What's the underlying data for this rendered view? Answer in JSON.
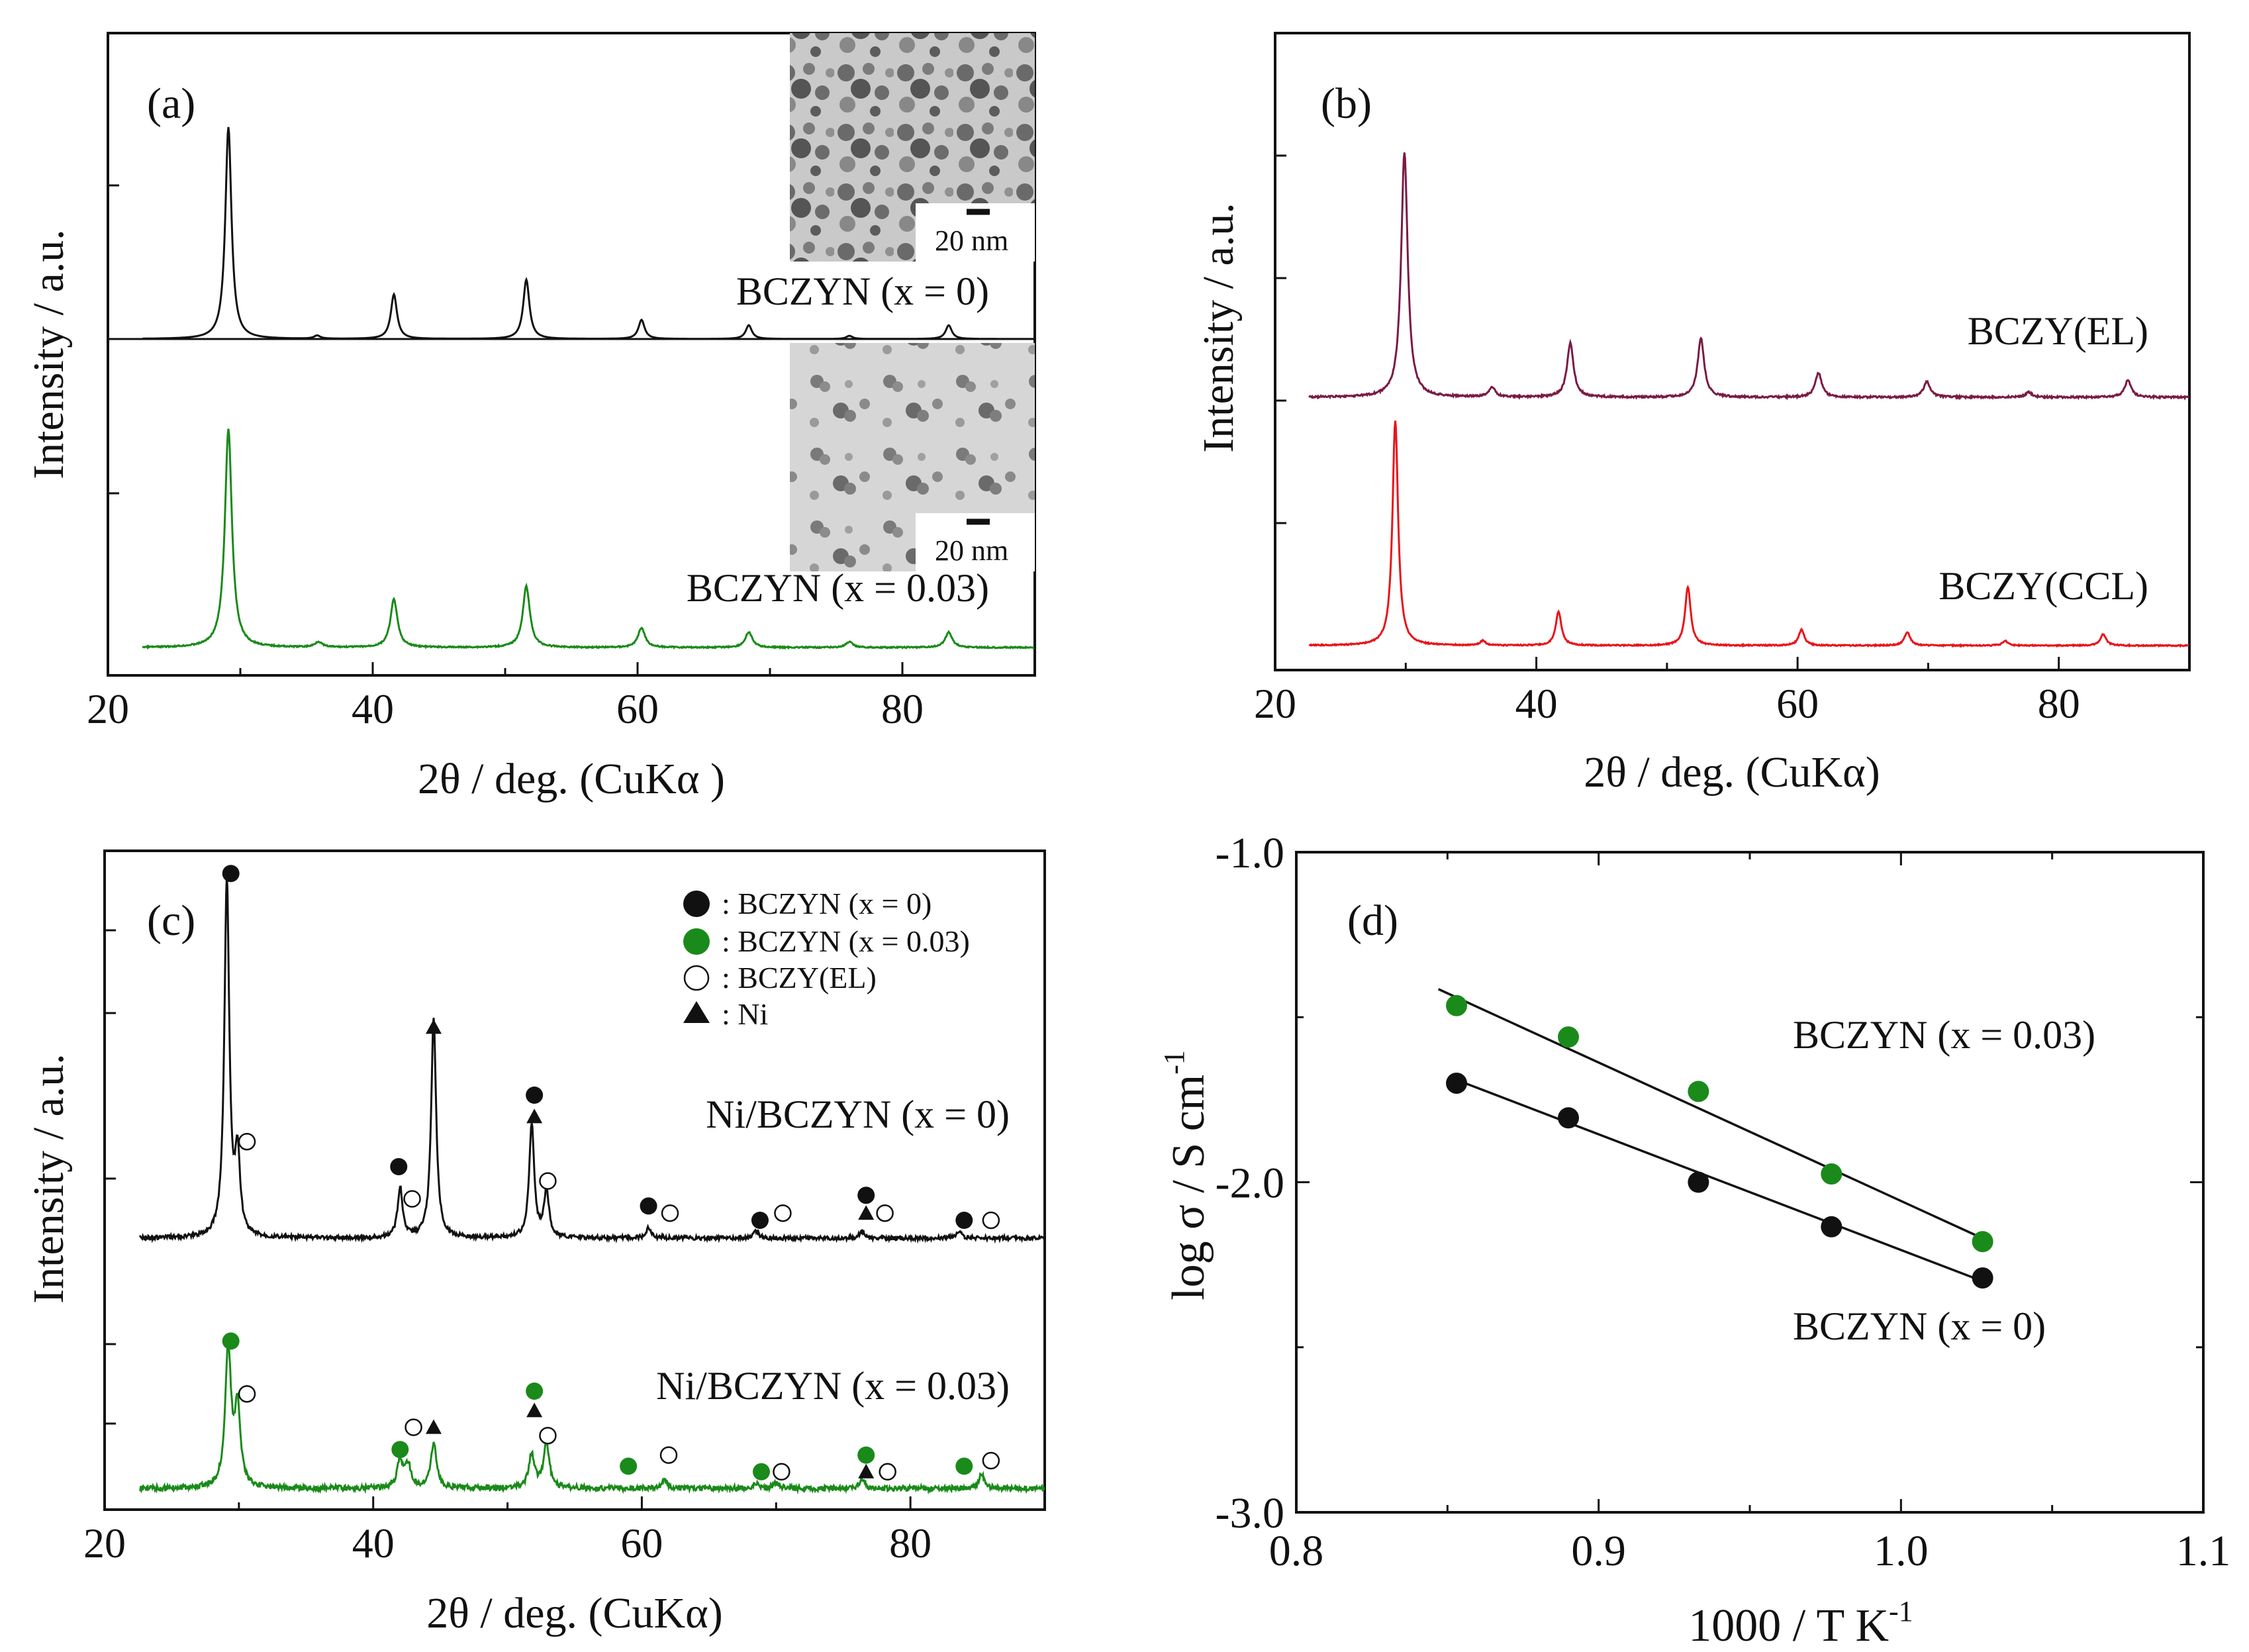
{
  "figure": {
    "panels": {
      "a": {
        "label": "(a)",
        "xlabel": "2θ / deg. (CuKα )",
        "ylabel": "Intensity / a.u.",
        "xticks": [
          "20",
          "40",
          "60",
          "80"
        ],
        "xlim": [
          20,
          90
        ],
        "inset_scale_label": "20 nm",
        "traces": [
          {
            "name": "BCZYN (x = 0)",
            "color": "#111111",
            "peaks": [
              [
                29.1,
                1.0
              ],
              [
                35.8,
                0.015
              ],
              [
                41.6,
                0.21
              ],
              [
                51.6,
                0.28
              ],
              [
                60.3,
                0.09
              ],
              [
                68.4,
                0.065
              ],
              [
                76.0,
                0.015
              ],
              [
                83.5,
                0.065
              ]
            ]
          },
          {
            "name": "BCZYN (x = 0.03)",
            "color": "#1a8a1a",
            "peaks": [
              [
                29.1,
                1.0
              ],
              [
                35.9,
                0.025
              ],
              [
                41.6,
                0.22
              ],
              [
                51.6,
                0.28
              ],
              [
                60.3,
                0.09
              ],
              [
                68.4,
                0.07
              ],
              [
                76.0,
                0.025
              ],
              [
                83.5,
                0.07
              ]
            ]
          }
        ]
      },
      "b": {
        "label": "(b)",
        "xlabel": "2θ / deg. (CuKα)",
        "ylabel": "Intensity / a.u.",
        "xticks": [
          "20",
          "40",
          "60",
          "80"
        ],
        "xlim": [
          20,
          90
        ],
        "traces": [
          {
            "name": "BCZY(EL)",
            "color": "#7a1a45",
            "peaks": [
              [
                29.9,
                1.0
              ],
              [
                36.6,
                0.04
              ],
              [
                42.6,
                0.22
              ],
              [
                52.6,
                0.24
              ],
              [
                61.6,
                0.1
              ],
              [
                69.9,
                0.065
              ],
              [
                77.7,
                0.02
              ],
              [
                85.3,
                0.07
              ]
            ]
          },
          {
            "name": "BCZY(CCL)",
            "color": "#e8141b",
            "peaks": [
              [
                29.2,
                1.0
              ],
              [
                35.9,
                0.02
              ],
              [
                41.7,
                0.15
              ],
              [
                51.6,
                0.26
              ],
              [
                60.3,
                0.07
              ],
              [
                68.4,
                0.06
              ],
              [
                75.9,
                0.02
              ],
              [
                83.4,
                0.05
              ]
            ]
          }
        ]
      },
      "c": {
        "label": "(c)",
        "xlabel": "2θ / deg. (CuKα)",
        "ylabel": "Intensity / a.u.",
        "xticks": [
          "20",
          "40",
          "60",
          "80"
        ],
        "xlim": [
          20,
          90
        ],
        "legend": [
          {
            "marker": "filled-circle",
            "color": "#111111",
            "label": ": BCZYN (x = 0)"
          },
          {
            "marker": "filled-circle",
            "color": "#1a8a1a",
            "label": ": BCZYN (x = 0.03)"
          },
          {
            "marker": "open-circle",
            "color": "#111111",
            "label": ": BCZY(EL)"
          },
          {
            "marker": "triangle",
            "color": "#111111",
            "label": ": Ni"
          }
        ],
        "traces": [
          {
            "name": "Ni/BCZYN (x = 0)",
            "color": "#111111",
            "peaks": [
              [
                29.1,
                1.0
              ],
              [
                29.9,
                0.22
              ],
              [
                42.0,
                0.14
              ],
              [
                44.5,
                0.62
              ],
              [
                51.8,
                0.32
              ],
              [
                52.9,
                0.13
              ],
              [
                60.5,
                0.03
              ],
              [
                68.5,
                0.02
              ],
              [
                76.4,
                0.02
              ],
              [
                83.6,
                0.02
              ]
            ],
            "markers": [
              {
                "type": "filled-circle",
                "x": 29.4,
                "h": 1.02
              },
              {
                "type": "open-circle",
                "x": 30.6,
                "h": 0.27
              },
              {
                "type": "filled-circle",
                "x": 41.9,
                "h": 0.2
              },
              {
                "type": "open-circle",
                "x": 42.9,
                "h": 0.11
              },
              {
                "type": "triangle",
                "x": 44.5,
                "h": 0.59
              },
              {
                "type": "filled-circle",
                "x": 52.0,
                "h": 0.4
              },
              {
                "type": "triangle",
                "x": 52.0,
                "h": 0.34
              },
              {
                "type": "open-circle",
                "x": 53.0,
                "h": 0.16
              },
              {
                "type": "filled-circle",
                "x": 60.5,
                "h": 0.09
              },
              {
                "type": "open-circle",
                "x": 62.1,
                "h": 0.07
              },
              {
                "type": "filled-circle",
                "x": 68.8,
                "h": 0.05
              },
              {
                "type": "open-circle",
                "x": 70.5,
                "h": 0.07
              },
              {
                "type": "filled-circle",
                "x": 76.7,
                "h": 0.12
              },
              {
                "type": "triangle",
                "x": 76.7,
                "h": 0.07
              },
              {
                "type": "open-circle",
                "x": 78.1,
                "h": 0.07
              },
              {
                "type": "filled-circle",
                "x": 84.0,
                "h": 0.05
              },
              {
                "type": "open-circle",
                "x": 86.0,
                "h": 0.05
              }
            ]
          },
          {
            "name": "Ni/BCZYN (x = 0.03)",
            "color": "#1a8a1a",
            "peaks": [
              [
                29.2,
                0.5
              ],
              [
                29.9,
                0.28
              ],
              [
                42.0,
                0.1
              ],
              [
                42.6,
                0.08
              ],
              [
                44.5,
                0.16
              ],
              [
                51.8,
                0.12
              ],
              [
                52.9,
                0.16
              ],
              [
                61.7,
                0.03
              ],
              [
                68.5,
                0.02
              ],
              [
                70.0,
                0.02
              ],
              [
                76.4,
                0.03
              ],
              [
                85.3,
                0.05
              ]
            ],
            "markers": [
              {
                "type": "filled-circle",
                "x": 29.4,
                "h": 0.53
              },
              {
                "type": "open-circle",
                "x": 30.6,
                "h": 0.34
              },
              {
                "type": "filled-circle",
                "x": 42.0,
                "h": 0.14
              },
              {
                "type": "open-circle",
                "x": 43.0,
                "h": 0.22
              },
              {
                "type": "triangle",
                "x": 44.5,
                "h": 0.22
              },
              {
                "type": "filled-circle",
                "x": 52.0,
                "h": 0.35
              },
              {
                "type": "triangle",
                "x": 52.0,
                "h": 0.28
              },
              {
                "type": "open-circle",
                "x": 53.0,
                "h": 0.19
              },
              {
                "type": "filled-circle",
                "x": 59.0,
                "h": 0.08
              },
              {
                "type": "open-circle",
                "x": 62.0,
                "h": 0.12
              },
              {
                "type": "filled-circle",
                "x": 68.9,
                "h": 0.06
              },
              {
                "type": "open-circle",
                "x": 70.4,
                "h": 0.06
              },
              {
                "type": "filled-circle",
                "x": 76.7,
                "h": 0.12
              },
              {
                "type": "triangle",
                "x": 76.7,
                "h": 0.06
              },
              {
                "type": "open-circle",
                "x": 78.3,
                "h": 0.06
              },
              {
                "type": "filled-circle",
                "x": 84.0,
                "h": 0.08
              },
              {
                "type": "open-circle",
                "x": 86.0,
                "h": 0.1
              }
            ]
          }
        ]
      },
      "d": {
        "label": "(d)",
        "xlabel_main": "1000 / T K",
        "xlabel_sup": "-1",
        "ylabel_main": "log σ / S cm",
        "ylabel_sup": "-1"
      }
    }
  },
  "chart_data": [
    {
      "type": "line",
      "title": "(a)",
      "xlabel": "2θ / deg. (CuKα )",
      "ylabel": "Intensity / a.u.",
      "xlim": [
        20,
        90
      ],
      "series": [
        {
          "name": "BCZYN (x = 0)",
          "peak_positions": [
            29.1,
            35.8,
            41.6,
            51.6,
            60.3,
            68.4,
            76.0,
            83.5
          ]
        },
        {
          "name": "BCZYN (x = 0.03)",
          "peak_positions": [
            29.1,
            35.9,
            41.6,
            51.6,
            60.3,
            68.4,
            76.0,
            83.5
          ]
        }
      ]
    },
    {
      "type": "line",
      "title": "(b)",
      "xlabel": "2θ / deg. (CuKα)",
      "ylabel": "Intensity / a.u.",
      "xlim": [
        20,
        90
      ],
      "series": [
        {
          "name": "BCZY(EL)",
          "peak_positions": [
            29.9,
            36.6,
            42.6,
            52.6,
            61.6,
            69.9,
            77.7,
            85.3
          ]
        },
        {
          "name": "BCZY(CCL)",
          "peak_positions": [
            29.2,
            35.9,
            41.7,
            51.6,
            60.3,
            68.4,
            75.9,
            83.4
          ]
        }
      ]
    },
    {
      "type": "line",
      "title": "(c)",
      "xlabel": "2θ / deg. (CuKα)",
      "ylabel": "Intensity / a.u.",
      "xlim": [
        20,
        90
      ],
      "series": [
        {
          "name": "Ni/BCZYN (x = 0)",
          "peak_positions": [
            29.1,
            42.0,
            44.5,
            51.8,
            60.5,
            68.5,
            76.4,
            83.6
          ]
        },
        {
          "name": "Ni/BCZYN (x = 0.03)",
          "peak_positions": [
            29.2,
            42.0,
            44.5,
            51.8,
            52.9,
            61.7,
            68.5,
            76.4,
            85.3
          ]
        }
      ]
    },
    {
      "type": "scatter",
      "title": "(d)",
      "xlabel": "1000 / T K-1",
      "ylabel": "log σ / S cm-1",
      "xlim": [
        0.8,
        1.1
      ],
      "ylim": [
        -3.0,
        -1.0
      ],
      "xticks": [
        "0.8",
        "0.9",
        "1.0",
        "1.1"
      ],
      "yticks": [
        "-1.0",
        "-2.0",
        "-3.0"
      ],
      "series": [
        {
          "name": "BCZYN (x = 0.03)",
          "color": "#1a8a1a",
          "x": [
            0.853,
            0.89,
            0.933,
            0.977,
            1.027
          ],
          "y": [
            -1.465,
            -1.56,
            -1.725,
            -1.975,
            -2.18
          ],
          "fit": {
            "x": [
              0.847,
              1.027
            ],
            "y": [
              -1.415,
              -2.17
            ]
          }
        },
        {
          "name": "BCZYN (x = 0)",
          "color": "#111111",
          "x": [
            0.853,
            0.89,
            0.933,
            0.977,
            1.027
          ],
          "y": [
            -1.7,
            -1.805,
            -2.0,
            -2.135,
            -2.29
          ],
          "fit": {
            "x": [
              0.853,
              1.027
            ],
            "y": [
              -1.69,
              -2.3
            ]
          }
        }
      ]
    }
  ]
}
